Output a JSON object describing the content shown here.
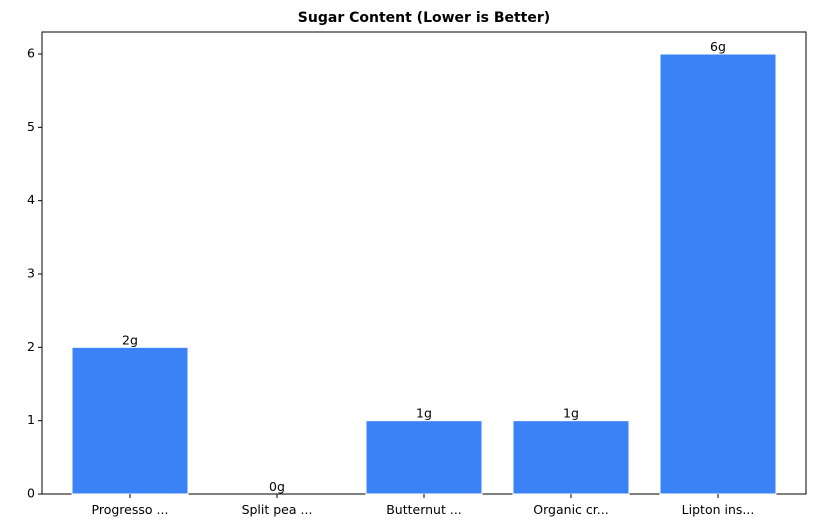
{
  "chart_data": {
    "type": "bar",
    "title": "Sugar Content (Lower is Better)",
    "categories": [
      "Progresso ...",
      "Split pea ...",
      "Butternut ...",
      "Organic cr...",
      "Lipton ins..."
    ],
    "values": [
      2,
      0,
      1,
      1,
      6
    ],
    "value_labels": [
      "2g",
      "0g",
      "1g",
      "1g",
      "6g"
    ],
    "color": "#3b82f6",
    "ylim": [
      0,
      6.3
    ],
    "yticks": [
      0,
      1,
      2,
      3,
      4,
      5,
      6
    ]
  }
}
